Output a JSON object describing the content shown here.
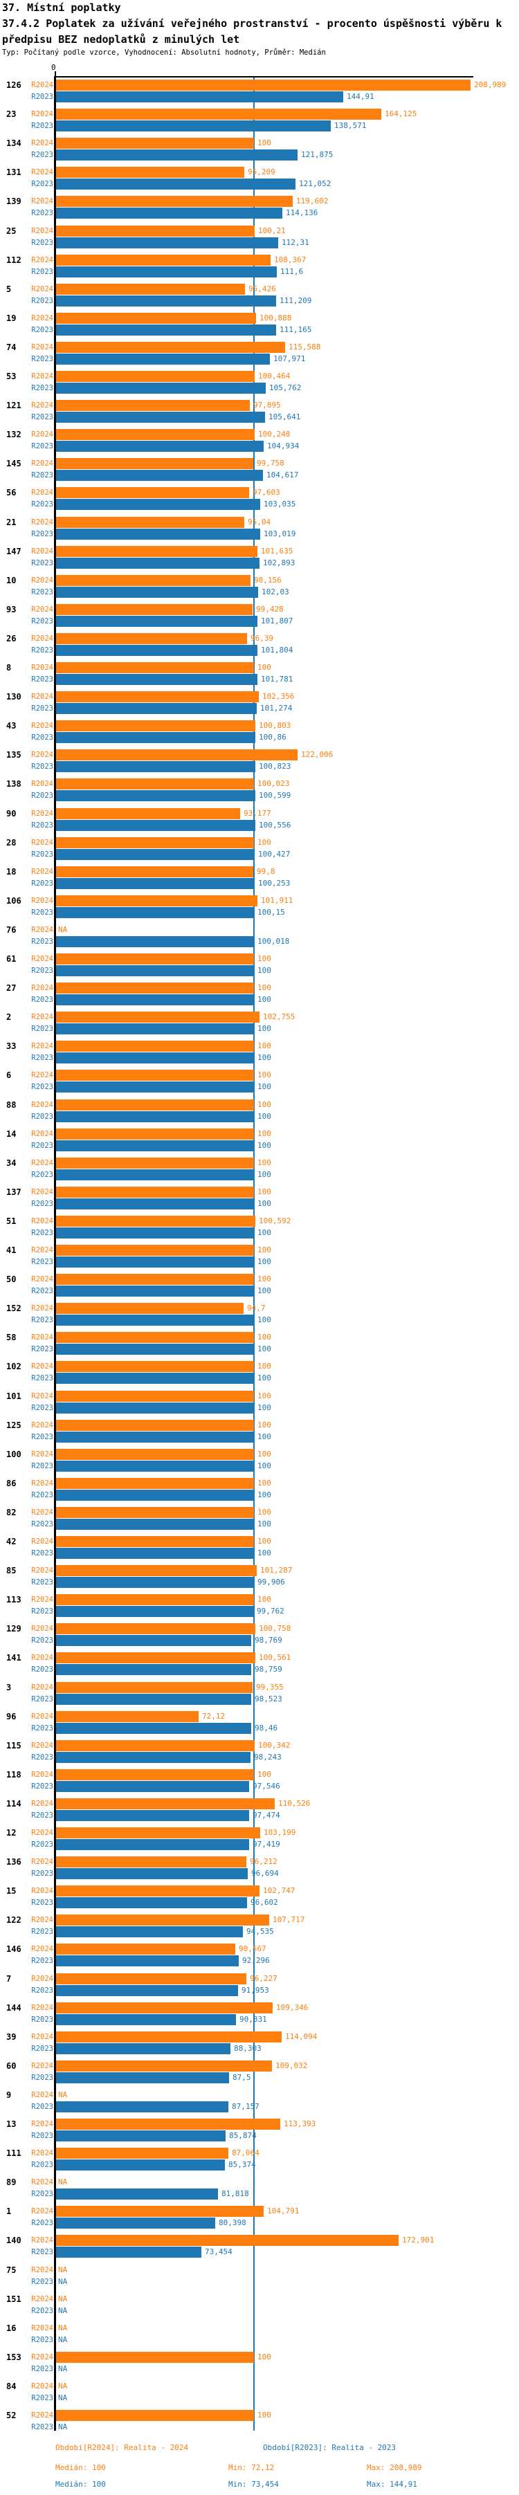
{
  "header": {
    "title": "37. Místní poplatky",
    "subtitle": "37.4.2 Poplatek za užívání veřejného prostranství - procento úspěšnosti výběru k předpisu BEZ nedoplatků z minulých let",
    "meta": "Typ: Počítaný podle vzorce, Vyhodnocení: Absolutní hodnoty, Průměr: Medián"
  },
  "axis": {
    "zero_label": "0"
  },
  "na_label": "NA",
  "colors": {
    "r2024": "#ff7f0e",
    "r2023": "#1f77b4",
    "axis": "#000000",
    "median_line": "#1f77b4"
  },
  "legend": {
    "r2024": {
      "period": "Období[R2024]: Realita - 2024",
      "median": "Medián: 100",
      "min": "Min: 72,12",
      "max": "Max: 208,989"
    },
    "r2023": {
      "period": "Období[R2023]: Realita - 2023",
      "median": "Medián: 100",
      "min": "Min: 73,454",
      "max": "Max: 144,91"
    }
  },
  "chart_data": {
    "type": "bar",
    "orientation": "horizontal",
    "series": [
      "R2024",
      "R2023"
    ],
    "series_colors": [
      "#ff7f0e",
      "#1f77b4"
    ],
    "x_origin": 0,
    "median_reference": 100,
    "value_note": "values are percentages, Czech decimal comma, NA = no data",
    "rows": [
      {
        "id": "126",
        "r2024": "208,989",
        "r2023": "144,91"
      },
      {
        "id": "23",
        "r2024": "164,125",
        "r2023": "138,571"
      },
      {
        "id": "134",
        "r2024": "100",
        "r2023": "121,875"
      },
      {
        "id": "131",
        "r2024": "95,209",
        "r2023": "121,052"
      },
      {
        "id": "139",
        "r2024": "119,602",
        "r2023": "114,136"
      },
      {
        "id": "25",
        "r2024": "100,21",
        "r2023": "112,31"
      },
      {
        "id": "112",
        "r2024": "108,367",
        "r2023": "111,6"
      },
      {
        "id": "5",
        "r2024": "95,426",
        "r2023": "111,209"
      },
      {
        "id": "19",
        "r2024": "100,888",
        "r2023": "111,165"
      },
      {
        "id": "74",
        "r2024": "115,588",
        "r2023": "107,971"
      },
      {
        "id": "53",
        "r2024": "100,464",
        "r2023": "105,762"
      },
      {
        "id": "121",
        "r2024": "97,895",
        "r2023": "105,641"
      },
      {
        "id": "132",
        "r2024": "100,248",
        "r2023": "104,934"
      },
      {
        "id": "145",
        "r2024": "99,758",
        "r2023": "104,617"
      },
      {
        "id": "56",
        "r2024": "97,603",
        "r2023": "103,035"
      },
      {
        "id": "21",
        "r2024": "95,04",
        "r2023": "103,019"
      },
      {
        "id": "147",
        "r2024": "101,635",
        "r2023": "102,893"
      },
      {
        "id": "10",
        "r2024": "98,156",
        "r2023": "102,03"
      },
      {
        "id": "93",
        "r2024": "99,428",
        "r2023": "101,807"
      },
      {
        "id": "26",
        "r2024": "96,39",
        "r2023": "101,804"
      },
      {
        "id": "8",
        "r2024": "100",
        "r2023": "101,781"
      },
      {
        "id": "130",
        "r2024": "102,356",
        "r2023": "101,274"
      },
      {
        "id": "43",
        "r2024": "100,803",
        "r2023": "100,86"
      },
      {
        "id": "135",
        "r2024": "122,006",
        "r2023": "100,823"
      },
      {
        "id": "138",
        "r2024": "100,023",
        "r2023": "100,599"
      },
      {
        "id": "90",
        "r2024": "93,177",
        "r2023": "100,556"
      },
      {
        "id": "28",
        "r2024": "100",
        "r2023": "100,427"
      },
      {
        "id": "18",
        "r2024": "99,8",
        "r2023": "100,253"
      },
      {
        "id": "106",
        "r2024": "101,911",
        "r2023": "100,15"
      },
      {
        "id": "76",
        "r2024": "NA",
        "r2023": "100,018"
      },
      {
        "id": "61",
        "r2024": "100",
        "r2023": "100"
      },
      {
        "id": "27",
        "r2024": "100",
        "r2023": "100"
      },
      {
        "id": "2",
        "r2024": "102,755",
        "r2023": "100"
      },
      {
        "id": "33",
        "r2024": "100",
        "r2023": "100"
      },
      {
        "id": "6",
        "r2024": "100",
        "r2023": "100"
      },
      {
        "id": "88",
        "r2024": "100",
        "r2023": "100"
      },
      {
        "id": "14",
        "r2024": "100",
        "r2023": "100"
      },
      {
        "id": "34",
        "r2024": "100",
        "r2023": "100"
      },
      {
        "id": "137",
        "r2024": "100",
        "r2023": "100"
      },
      {
        "id": "51",
        "r2024": "100,592",
        "r2023": "100"
      },
      {
        "id": "41",
        "r2024": "100",
        "r2023": "100"
      },
      {
        "id": "50",
        "r2024": "100",
        "r2023": "100"
      },
      {
        "id": "152",
        "r2024": "94,7",
        "r2023": "100"
      },
      {
        "id": "58",
        "r2024": "100",
        "r2023": "100"
      },
      {
        "id": "102",
        "r2024": "100",
        "r2023": "100"
      },
      {
        "id": "101",
        "r2024": "100",
        "r2023": "100"
      },
      {
        "id": "125",
        "r2024": "100",
        "r2023": "100"
      },
      {
        "id": "100",
        "r2024": "100",
        "r2023": "100"
      },
      {
        "id": "86",
        "r2024": "100",
        "r2023": "100"
      },
      {
        "id": "82",
        "r2024": "100",
        "r2023": "100"
      },
      {
        "id": "42",
        "r2024": "100",
        "r2023": "100"
      },
      {
        "id": "85",
        "r2024": "101,287",
        "r2023": "99,906"
      },
      {
        "id": "113",
        "r2024": "100",
        "r2023": "99,762"
      },
      {
        "id": "129",
        "r2024": "100,758",
        "r2023": "98,769"
      },
      {
        "id": "141",
        "r2024": "100,561",
        "r2023": "98,759"
      },
      {
        "id": "3",
        "r2024": "99,355",
        "r2023": "98,523"
      },
      {
        "id": "96",
        "r2024": "72,12",
        "r2023": "98,46"
      },
      {
        "id": "115",
        "r2024": "100,342",
        "r2023": "98,243"
      },
      {
        "id": "118",
        "r2024": "100",
        "r2023": "97,546"
      },
      {
        "id": "114",
        "r2024": "110,526",
        "r2023": "97,474"
      },
      {
        "id": "12",
        "r2024": "103,199",
        "r2023": "97,419"
      },
      {
        "id": "136",
        "r2024": "96,212",
        "r2023": "96,694"
      },
      {
        "id": "15",
        "r2024": "102,747",
        "r2023": "96,602"
      },
      {
        "id": "122",
        "r2024": "107,717",
        "r2023": "94,535"
      },
      {
        "id": "146",
        "r2024": "90,567",
        "r2023": "92,296"
      },
      {
        "id": "7",
        "r2024": "96,227",
        "r2023": "91,953"
      },
      {
        "id": "144",
        "r2024": "109,346",
        "r2023": "90,831"
      },
      {
        "id": "39",
        "r2024": "114,094",
        "r2023": "88,303"
      },
      {
        "id": "60",
        "r2024": "109,032",
        "r2023": "87,5"
      },
      {
        "id": "9",
        "r2024": "NA",
        "r2023": "87,157"
      },
      {
        "id": "13",
        "r2024": "113,393",
        "r2023": "85,874"
      },
      {
        "id": "111",
        "r2024": "87,064",
        "r2023": "85,374"
      },
      {
        "id": "89",
        "r2024": "NA",
        "r2023": "81,818"
      },
      {
        "id": "1",
        "r2024": "104,791",
        "r2023": "80,398"
      },
      {
        "id": "140",
        "r2024": "172,901",
        "r2023": "73,454"
      },
      {
        "id": "75",
        "r2024": "NA",
        "r2023": "NA"
      },
      {
        "id": "151",
        "r2024": "NA",
        "r2023": "NA"
      },
      {
        "id": "16",
        "r2024": "NA",
        "r2023": "NA"
      },
      {
        "id": "153",
        "r2024": "100",
        "r2023": "NA"
      },
      {
        "id": "84",
        "r2024": "NA",
        "r2023": "NA"
      },
      {
        "id": "52",
        "r2024": "100",
        "r2023": "NA"
      }
    ]
  }
}
